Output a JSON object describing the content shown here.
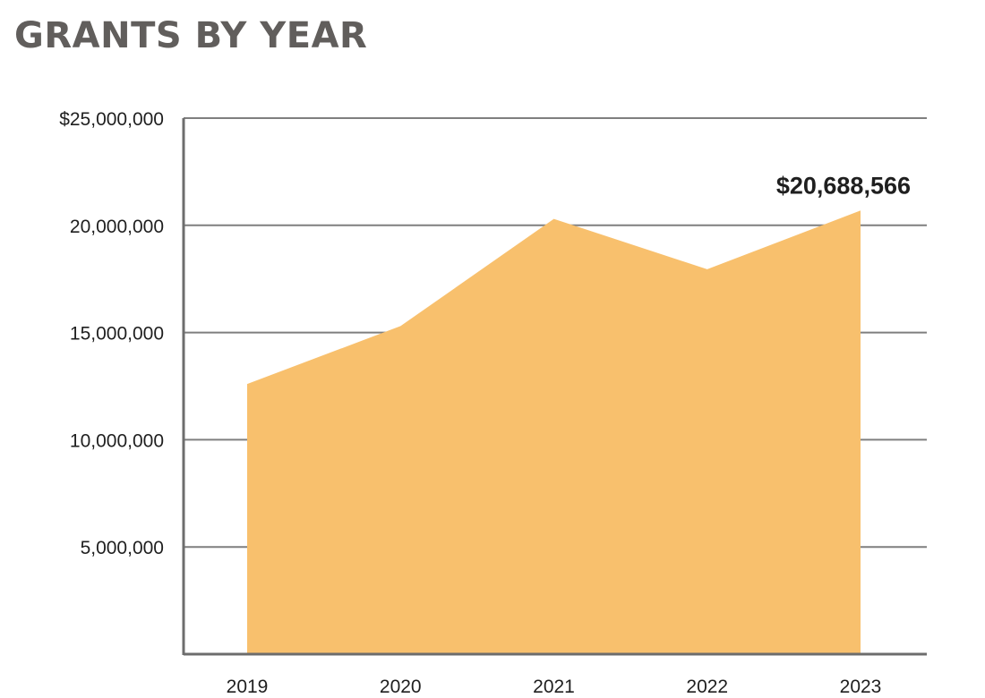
{
  "chart_data": {
    "type": "area",
    "title": "GRANTS BY YEAR",
    "xlabel": "",
    "ylabel": "",
    "categories": [
      "2019",
      "2020",
      "2021",
      "2022",
      "2023"
    ],
    "values": [
      12600000,
      15300000,
      20300000,
      17950000,
      20688566
    ],
    "ylim": [
      0,
      25000000
    ],
    "yticks": [
      5000000,
      10000000,
      15000000,
      20000000,
      25000000
    ],
    "ytick_labels": [
      "5,000,000",
      "10,000,000",
      "15,000,000",
      "20,000,000",
      "$25,000,000"
    ],
    "annotation": {
      "category": "2023",
      "text": "$20,688,566"
    },
    "grid": true,
    "legend": "none",
    "colors": {
      "area": "#f8c06d",
      "grid": "#7f7f7f",
      "axis": "#6d6d6d"
    }
  }
}
